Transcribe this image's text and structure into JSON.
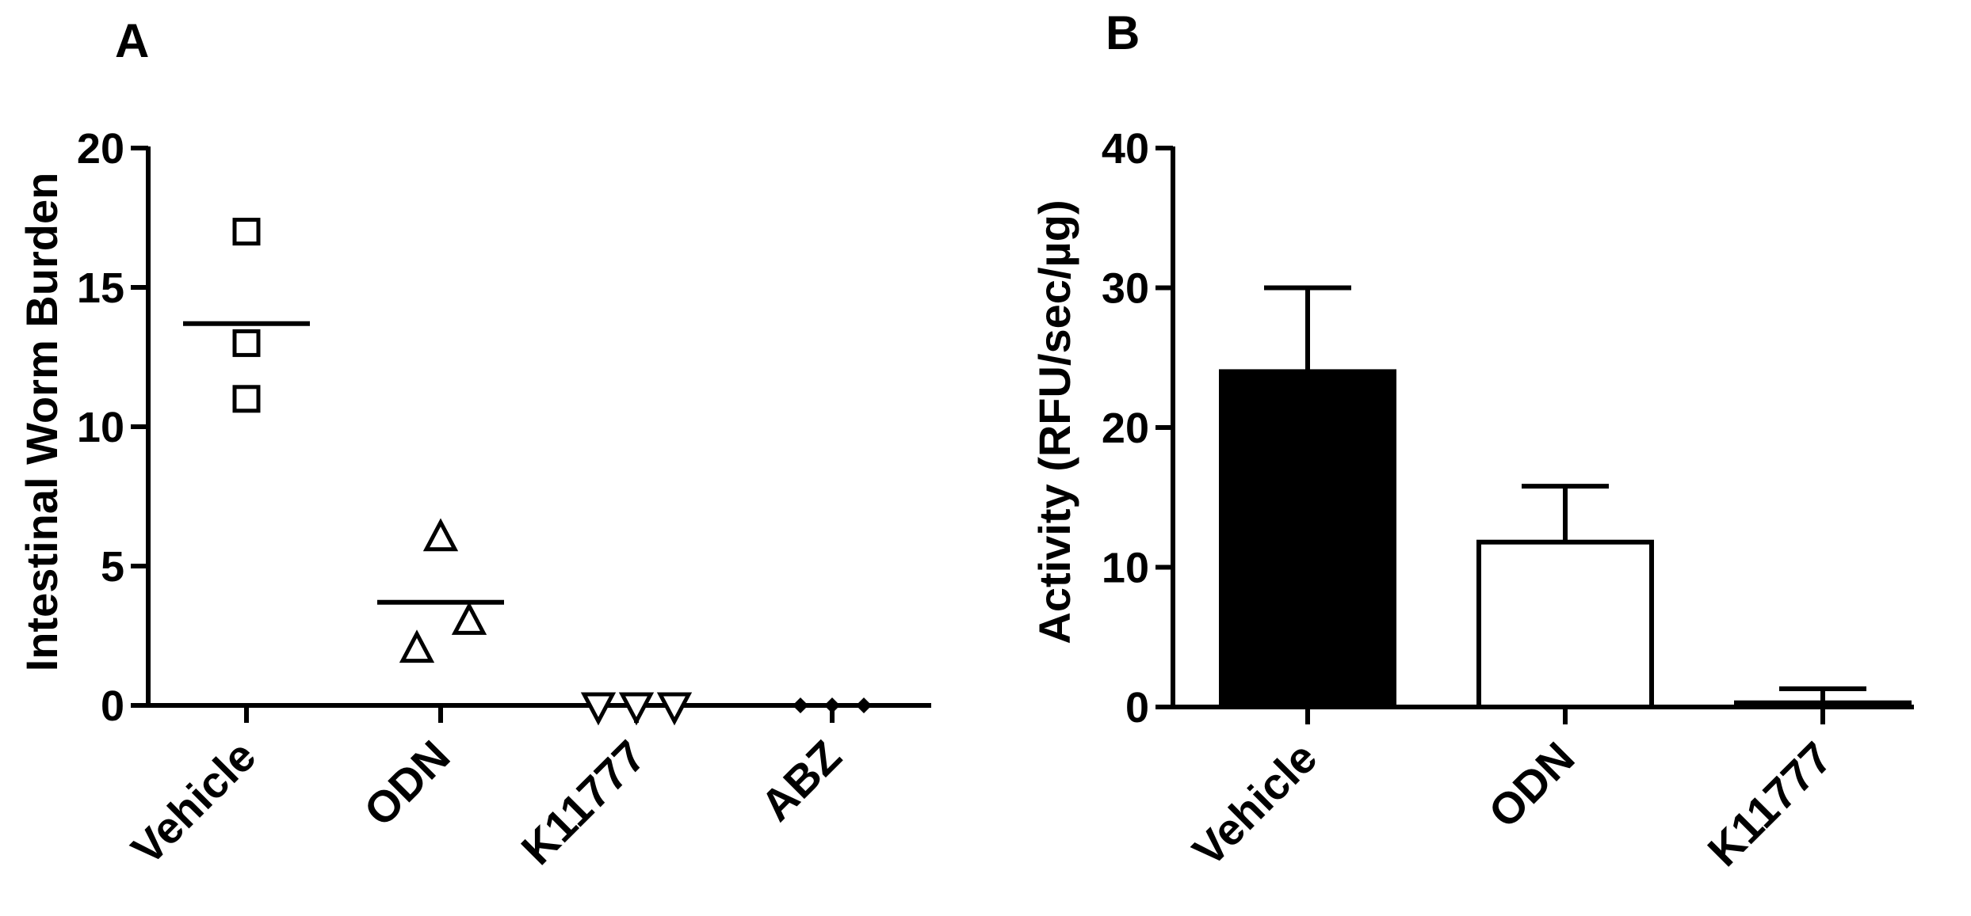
{
  "chart_data": [
    {
      "panel": "A",
      "type": "scatter",
      "ylabel": "Intestinal Worm Burden",
      "xlabel": "",
      "ylim": [
        0,
        20
      ],
      "yticks": [
        0,
        5,
        10,
        15,
        20
      ],
      "categories": [
        "Vehicle",
        "ODN",
        "K11777",
        "ABZ"
      ],
      "series": [
        {
          "category": "Vehicle",
          "marker": "square-open",
          "points": [
            17,
            13,
            11
          ],
          "mean": 13.7
        },
        {
          "category": "ODN",
          "marker": "triangle-up-open",
          "points": [
            6,
            3,
            2
          ],
          "mean": 3.7
        },
        {
          "category": "K11777",
          "marker": "triangle-down-open",
          "points": [
            0,
            0,
            0
          ],
          "mean": 0
        },
        {
          "category": "ABZ",
          "marker": "diamond-filled",
          "points": [
            0,
            0,
            0
          ],
          "mean": 0
        }
      ]
    },
    {
      "panel": "B",
      "type": "bar",
      "ylabel": "Activity (RFU/sec/µg)",
      "xlabel": "",
      "ylim": [
        0,
        40
      ],
      "yticks": [
        0,
        10,
        20,
        30,
        40
      ],
      "categories": [
        "Vehicle",
        "ODN",
        "K11777"
      ],
      "values": [
        24,
        11.8,
        0.3
      ],
      "errors": [
        6,
        4,
        1
      ],
      "fills": [
        "#000000",
        "#ffffff",
        "#cfcfcf"
      ]
    }
  ],
  "colors": {
    "ink": "#000000",
    "background": "#ffffff"
  }
}
